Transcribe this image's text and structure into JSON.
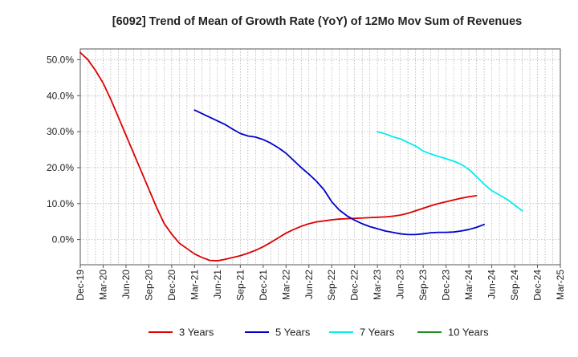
{
  "chart_data": {
    "type": "line",
    "title": "[6092]  Trend of Mean of Growth Rate (YoY) of 12Mo Mov Sum of Revenues",
    "xlabel": "",
    "ylabel": "",
    "ylim": [
      -7.0,
      53.0
    ],
    "yticks": [
      0,
      10,
      20,
      30,
      40,
      50
    ],
    "ytick_labels": [
      "0.0%",
      "10.0%",
      "20.0%",
      "30.0%",
      "40.0%",
      "50.0%"
    ],
    "x_start": "Dec-19",
    "x_range_months": [
      0,
      63
    ],
    "xticks": [
      {
        "label": "Dec-19",
        "m": 0
      },
      {
        "label": "Mar-20",
        "m": 3
      },
      {
        "label": "Jun-20",
        "m": 6
      },
      {
        "label": "Sep-20",
        "m": 9
      },
      {
        "label": "Dec-20",
        "m": 12
      },
      {
        "label": "Mar-21",
        "m": 15
      },
      {
        "label": "Jun-21",
        "m": 18
      },
      {
        "label": "Sep-21",
        "m": 21
      },
      {
        "label": "Dec-21",
        "m": 24
      },
      {
        "label": "Mar-22",
        "m": 27
      },
      {
        "label": "Jun-22",
        "m": 30
      },
      {
        "label": "Sep-22",
        "m": 33
      },
      {
        "label": "Dec-22",
        "m": 36
      },
      {
        "label": "Mar-23",
        "m": 39
      },
      {
        "label": "Jun-23",
        "m": 42
      },
      {
        "label": "Sep-23",
        "m": 45
      },
      {
        "label": "Dec-23",
        "m": 48
      },
      {
        "label": "Mar-24",
        "m": 51
      },
      {
        "label": "Jun-24",
        "m": 54
      },
      {
        "label": "Sep-24",
        "m": 57
      },
      {
        "label": "Dec-24",
        "m": 60
      },
      {
        "label": "Mar-25",
        "m": 63
      }
    ],
    "grid": true,
    "legend_position": "bottom",
    "series": [
      {
        "name": "3 Years",
        "color": "#dd0000",
        "start_month": 0,
        "values": [
          52.0,
          50.0,
          47.0,
          43.5,
          39.0,
          34.0,
          29.0,
          24.0,
          19.0,
          14.0,
          9.0,
          4.5,
          1.5,
          -1.0,
          -2.5,
          -4.0,
          -5.0,
          -5.8,
          -5.9,
          -5.5,
          -5.0,
          -4.5,
          -3.8,
          -3.0,
          -2.0,
          -0.8,
          0.5,
          1.8,
          2.8,
          3.7,
          4.4,
          4.9,
          5.2,
          5.5,
          5.7,
          5.8,
          5.9,
          6.0,
          6.1,
          6.2,
          6.3,
          6.5,
          6.8,
          7.3,
          8.0,
          8.7,
          9.4,
          10.0,
          10.5,
          11.0,
          11.5,
          11.9,
          12.2
        ]
      },
      {
        "name": "5 Years",
        "color": "#0000cc",
        "start_month": 15,
        "values": [
          36.0,
          35.0,
          34.0,
          33.0,
          32.0,
          30.7,
          29.5,
          28.8,
          28.5,
          27.8,
          26.8,
          25.5,
          24.0,
          22.0,
          20.0,
          18.2,
          16.2,
          13.8,
          10.5,
          8.2,
          6.6,
          5.4,
          4.4,
          3.6,
          3.0,
          2.4,
          2.0,
          1.6,
          1.4,
          1.4,
          1.6,
          1.9,
          2.0,
          2.0,
          2.1,
          2.4,
          2.8,
          3.4,
          4.2
        ]
      },
      {
        "name": "7 Years",
        "color": "#00eeee",
        "start_month": 39,
        "values": [
          30.0,
          29.4,
          28.6,
          28.0,
          27.0,
          26.0,
          24.6,
          23.8,
          23.1,
          22.5,
          21.8,
          20.9,
          19.5,
          17.5,
          15.4,
          13.6,
          12.4,
          11.2,
          9.6,
          8.0
        ]
      },
      {
        "name": "10 Years",
        "color": "#228b22",
        "start_month": 60,
        "values": []
      }
    ]
  }
}
